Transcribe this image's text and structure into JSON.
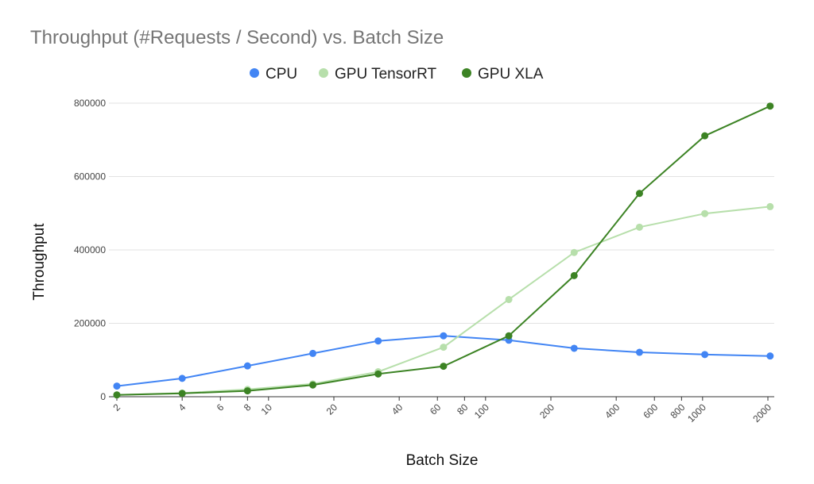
{
  "chart_data": {
    "type": "line",
    "title": "Throughput (#Requests / Second) vs. Batch Size",
    "xlabel": "Batch Size",
    "ylabel": "Throughput",
    "x_scale": "log",
    "xlim": [
      2,
      2000
    ],
    "ylim": [
      0,
      800000
    ],
    "yticks": [
      0,
      200000,
      400000,
      600000,
      800000
    ],
    "ytick_labels": [
      "0",
      "200000",
      "400000",
      "600000",
      "800000"
    ],
    "xticks": [
      2,
      4,
      6,
      8,
      10,
      20,
      40,
      60,
      80,
      100,
      200,
      400,
      600,
      800,
      1000,
      2000
    ],
    "xtick_labels": [
      "2",
      "4",
      "6",
      "8",
      "10",
      "20",
      "40",
      "60",
      "80",
      "100",
      "200",
      "400",
      "600",
      "800",
      "1000",
      "2000"
    ],
    "grid": true,
    "legend_position": "top",
    "x": [
      2,
      4,
      8,
      16,
      32,
      64,
      128,
      256,
      512,
      1024,
      2048
    ],
    "series": [
      {
        "name": "CPU",
        "color": "#4285f4",
        "values": [
          29000,
          50000,
          84000,
          118000,
          152000,
          166000,
          154000,
          132000,
          121000,
          115000,
          111000
        ]
      },
      {
        "name": "GPU TensorRT",
        "color": "#b7dfab",
        "values": [
          5000,
          10000,
          20000,
          35000,
          68000,
          135000,
          265000,
          393000,
          462000,
          499000,
          518000
        ]
      },
      {
        "name": "GPU XLA",
        "color": "#3c8324",
        "values": [
          5000,
          9000,
          16000,
          32000,
          62000,
          83000,
          166000,
          330000,
          554000,
          711000,
          792000
        ]
      }
    ]
  }
}
